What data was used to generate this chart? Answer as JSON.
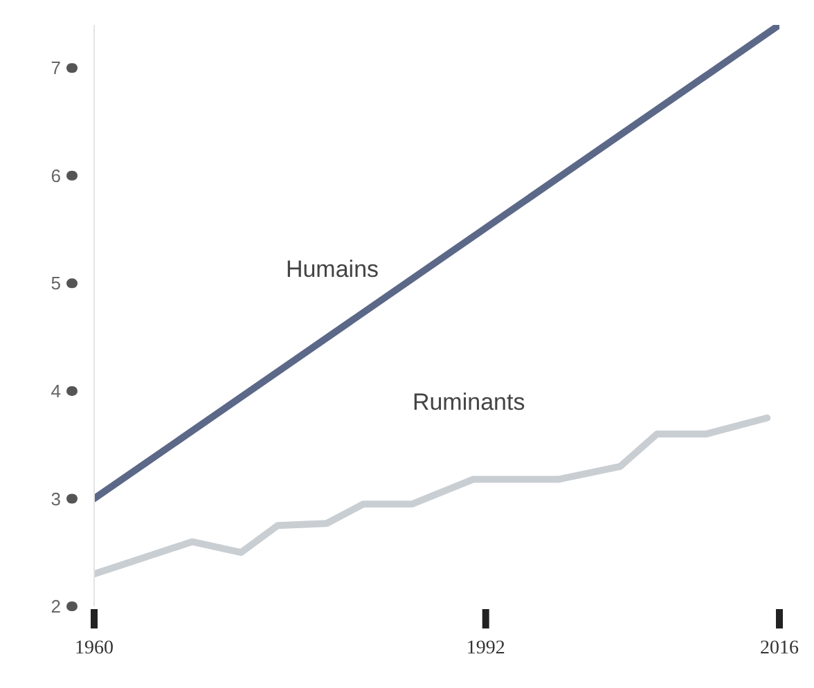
{
  "chart_data": {
    "type": "line",
    "x": [
      1960,
      2016
    ],
    "series": [
      {
        "name": "Humains",
        "color": "#5b6888",
        "values": [
          3.0,
          7.4
        ]
      },
      {
        "name": "Ruminants",
        "color": "#c9ced3",
        "x": [
          1960,
          1964,
          1968,
          1972,
          1975,
          1979,
          1982,
          1986,
          1991,
          1998,
          2003,
          2006,
          2010,
          2015
        ],
        "values": [
          2.3,
          2.45,
          2.6,
          2.5,
          2.75,
          2.77,
          2.95,
          2.95,
          3.18,
          3.18,
          3.3,
          3.6,
          3.6,
          3.75
        ]
      }
    ],
    "xlim": [
      1960,
      2016
    ],
    "ylim": [
      2,
      7.4
    ],
    "xticks": [
      1960,
      1992,
      2016
    ],
    "yticks": [
      2,
      3,
      4,
      5,
      6,
      7
    ],
    "grid": false,
    "legend": false,
    "marker": "none",
    "line_style": "solid"
  }
}
